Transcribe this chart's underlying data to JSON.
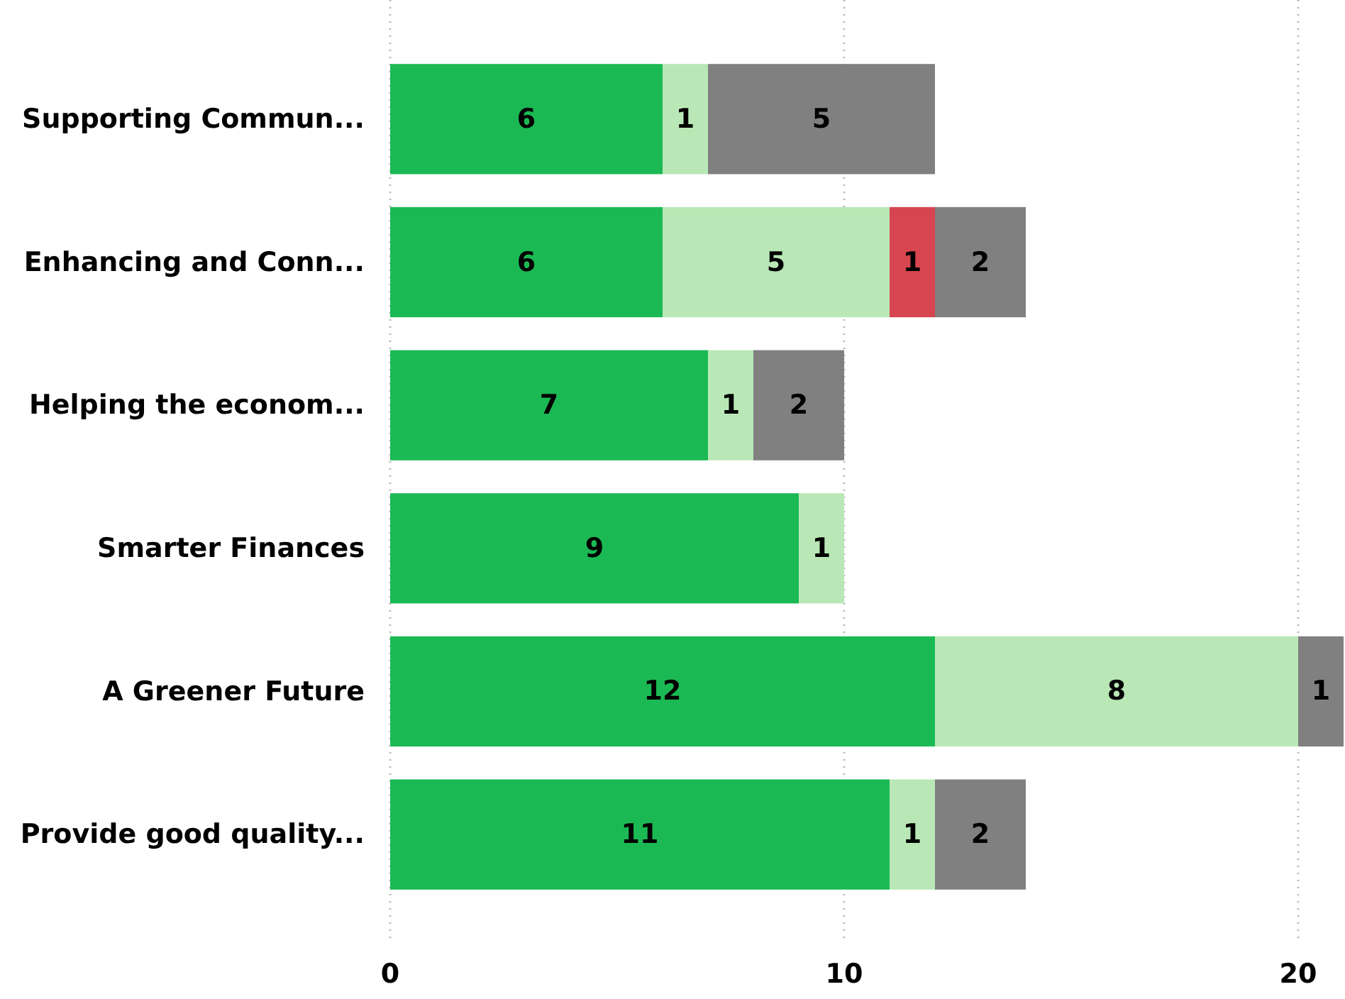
{
  "chart_data": {
    "type": "bar",
    "orientation": "horizontal",
    "stacked": true,
    "categories": [
      "Supporting Commun...",
      "Enhancing and Conn...",
      "Helping the econom...",
      "Smarter Finances",
      "A Greener Future",
      "Provide good quality..."
    ],
    "series": [
      {
        "color": "#1bb954",
        "values": [
          6,
          6,
          7,
          9,
          12,
          11
        ]
      },
      {
        "color": "#b9e8b6",
        "values": [
          1,
          5,
          1,
          1,
          8,
          1
        ]
      },
      {
        "color": "#d64550",
        "values": [
          null,
          1,
          null,
          null,
          null,
          null
        ]
      },
      {
        "color": "#808080",
        "values": [
          5,
          2,
          2,
          null,
          1,
          2
        ]
      }
    ],
    "xlim": [
      0,
      21
    ],
    "xticks": [
      0,
      10,
      20
    ],
    "grid": "x",
    "data_labels": true
  }
}
